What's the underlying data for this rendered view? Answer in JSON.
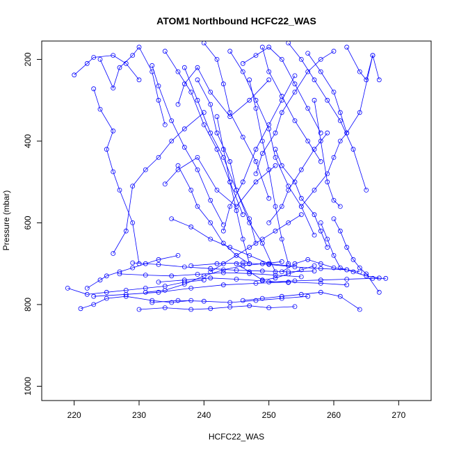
{
  "chart_data": {
    "type": "line",
    "title": "ATOM1 Northbound HCFC22_WAS",
    "xlabel": "HCFC22_WAS",
    "ylabel": "Pressure (mbar)",
    "xlim": [
      215,
      275
    ],
    "ylim": [
      1035,
      155
    ],
    "y_reversed": true,
    "xticks": [
      220,
      230,
      240,
      250,
      260,
      270
    ],
    "yticks": [
      200,
      400,
      600,
      800,
      1000
    ],
    "grid": false,
    "legend": "none",
    "colors": {
      "series": "#0000ff",
      "axis": "#000000",
      "background": "#ffffff"
    },
    "series": [
      {
        "x": [
          220,
          222,
          223,
          226,
          228,
          230
        ],
        "y": [
          238,
          210,
          195,
          190,
          210,
          250
        ]
      },
      {
        "x": [
          223,
          224,
          226,
          225,
          226,
          227,
          229,
          230
        ],
        "y": [
          272,
          322,
          375,
          420,
          475,
          520,
          600,
          700
        ]
      },
      {
        "x": [
          224,
          226,
          227,
          229,
          230,
          232,
          233,
          234
        ],
        "y": [
          200,
          270,
          220,
          190,
          170,
          230,
          300,
          360
        ]
      },
      {
        "x": [
          226,
          228,
          229,
          231,
          233,
          235,
          237,
          240
        ],
        "y": [
          675,
          620,
          510,
          470,
          440,
          400,
          370,
          330
        ]
      },
      {
        "x": [
          222,
          224,
          225,
          227,
          229,
          231,
          233,
          236
        ],
        "y": [
          760,
          740,
          730,
          720,
          710,
          700,
          690,
          680
        ]
      },
      {
        "x": [
          219,
          222,
          225,
          228,
          231,
          234,
          237,
          240
        ],
        "y": [
          760,
          775,
          770,
          765,
          760,
          755,
          745,
          740
        ]
      },
      {
        "x": [
          221,
          223,
          225,
          228,
          232,
          235,
          238
        ],
        "y": [
          810,
          800,
          785,
          780,
          790,
          795,
          790
        ]
      },
      {
        "x": [
          230,
          234,
          238,
          241,
          244,
          247,
          250,
          254
        ],
        "y": [
          812,
          808,
          812,
          810,
          806,
          803,
          808,
          805
        ]
      },
      {
        "x": [
          232,
          233,
          235,
          237,
          239,
          241,
          243
        ],
        "y": [
          215,
          265,
          350,
          415,
          470,
          545,
          605
        ]
      },
      {
        "x": [
          234,
          236,
          238,
          240,
          242,
          244,
          246
        ],
        "y": [
          180,
          230,
          280,
          360,
          420,
          500,
          580
        ]
      },
      {
        "x": [
          236,
          238,
          239,
          241,
          243,
          245,
          247
        ],
        "y": [
          460,
          520,
          560,
          600,
          650,
          680,
          700
        ]
      },
      {
        "x": [
          237,
          239,
          241,
          243,
          245,
          247,
          249,
          251
        ],
        "y": [
          220,
          300,
          380,
          440,
          520,
          600,
          650,
          720
        ]
      },
      {
        "x": [
          240,
          242,
          243,
          244,
          246,
          248,
          250
        ],
        "y": [
          160,
          200,
          260,
          330,
          390,
          450,
          540
        ]
      },
      {
        "x": [
          241,
          243,
          245,
          247,
          249,
          251,
          253,
          255
        ],
        "y": [
          720,
          700,
          680,
          660,
          640,
          620,
          600,
          580
        ]
      },
      {
        "x": [
          243,
          244,
          246,
          248,
          250,
          252,
          254
        ],
        "y": [
          620,
          560,
          500,
          420,
          360,
          300,
          240
        ]
      },
      {
        "x": [
          244,
          246,
          248,
          250,
          251,
          253,
          255,
          257
        ],
        "y": [
          180,
          230,
          300,
          370,
          440,
          510,
          560,
          630
        ]
      },
      {
        "x": [
          245,
          247,
          249,
          251,
          253,
          255,
          257
        ],
        "y": [
          700,
          720,
          740,
          735,
          725,
          715,
          705
        ]
      },
      {
        "x": [
          246,
          248,
          250,
          252,
          254,
          256,
          258
        ],
        "y": [
          210,
          190,
          170,
          200,
          260,
          320,
          380
        ]
      },
      {
        "x": [
          248,
          249,
          251,
          252,
          254,
          256,
          258,
          260
        ],
        "y": [
          480,
          430,
          380,
          330,
          280,
          230,
          200,
          180
        ]
      },
      {
        "x": [
          250,
          252,
          253,
          255,
          257,
          259
        ],
        "y": [
          600,
          560,
          520,
          470,
          420,
          380
        ]
      },
      {
        "x": [
          252,
          254,
          256,
          258,
          260,
          262,
          264
        ],
        "y": [
          720,
          700,
          690,
          700,
          710,
          715,
          720
        ]
      },
      {
        "x": [
          253,
          255,
          257,
          259,
          261,
          263,
          265
        ],
        "y": [
          160,
          200,
          250,
          300,
          350,
          420,
          520
        ]
      },
      {
        "x": [
          255,
          257,
          259,
          260,
          261,
          262
        ],
        "y": [
          560,
          520,
          480,
          440,
          400,
          380
        ]
      },
      {
        "x": [
          256,
          258,
          260,
          261,
          262,
          264,
          266
        ],
        "y": [
          185,
          230,
          280,
          330,
          380,
          330,
          190
        ]
      },
      {
        "x": [
          258,
          259,
          260,
          261,
          263,
          265,
          267
        ],
        "y": [
          600,
          640,
          680,
          710,
          720,
          730,
          735
        ]
      },
      {
        "x": [
          260,
          261,
          262,
          263,
          264,
          265,
          267
        ],
        "y": [
          590,
          620,
          660,
          690,
          710,
          725,
          770
        ]
      },
      {
        "x": [
          262,
          264,
          265,
          266,
          267
        ],
        "y": [
          170,
          230,
          250,
          190,
          250
        ]
      },
      {
        "x": [
          250,
          254,
          258,
          262,
          266,
          268
        ],
        "y": [
          745,
          742,
          740,
          738,
          736,
          736
        ]
      },
      {
        "x": [
          238,
          242,
          246,
          250,
          254,
          258,
          262
        ],
        "y": [
          705,
          700,
          698,
          702,
          708,
          712,
          715
        ]
      },
      {
        "x": [
          233,
          237,
          241,
          245,
          249,
          253
        ],
        "y": [
          745,
          740,
          735,
          738,
          742,
          746
        ]
      },
      {
        "x": [
          231,
          234,
          237,
          240,
          243,
          246,
          249,
          252
        ],
        "y": [
          770,
          765,
          750,
          730,
          715,
          705,
          700,
          695
        ]
      },
      {
        "x": [
          235,
          238,
          241,
          244,
          247,
          250,
          253
        ],
        "y": [
          590,
          610,
          640,
          660,
          680,
          700,
          705
        ]
      },
      {
        "x": [
          239,
          241,
          242,
          244,
          245,
          247,
          248
        ],
        "y": [
          250,
          310,
          380,
          450,
          520,
          590,
          650
        ]
      },
      {
        "x": [
          242,
          243,
          244,
          245,
          246,
          247
        ],
        "y": [
          340,
          420,
          500,
          570,
          640,
          700
        ]
      },
      {
        "x": [
          247,
          248,
          249,
          250,
          251,
          252,
          253
        ],
        "y": [
          250,
          320,
          400,
          470,
          560,
          640,
          700
        ]
      },
      {
        "x": [
          227,
          231,
          235,
          239,
          243,
          247,
          251,
          255
        ],
        "y": [
          725,
          728,
          730,
          726,
          722,
          724,
          728,
          732
        ]
      },
      {
        "x": [
          223,
          228,
          233,
          238,
          243,
          248,
          253,
          258,
          262
        ],
        "y": [
          780,
          775,
          770,
          760,
          752,
          748,
          745,
          748,
          752
        ]
      },
      {
        "x": [
          229,
          233,
          237,
          241,
          245,
          249,
          253,
          257
        ],
        "y": [
          698,
          702,
          708,
          712,
          716,
          718,
          720,
          718
        ]
      },
      {
        "x": [
          234,
          236,
          239,
          242,
          245,
          248,
          251
        ],
        "y": [
          505,
          470,
          440,
          520,
          560,
          500,
          460
        ]
      },
      {
        "x": [
          236,
          237,
          239,
          241,
          244,
          247,
          250
        ],
        "y": [
          310,
          260,
          220,
          280,
          340,
          300,
          250
        ]
      },
      {
        "x": [
          251,
          252,
          254,
          255,
          257,
          258,
          259
        ],
        "y": [
          420,
          460,
          500,
          540,
          580,
          620,
          660
        ]
      },
      {
        "x": [
          249,
          250,
          252,
          254,
          256,
          258
        ],
        "y": [
          170,
          230,
          290,
          350,
          400,
          450
        ]
      },
      {
        "x": [
          257,
          258,
          259,
          260,
          261
        ],
        "y": [
          300,
          400,
          500,
          545,
          560
        ]
      },
      {
        "x": [
          246,
          249,
          252,
          255,
          258,
          261,
          264
        ],
        "y": [
          790,
          785,
          780,
          775,
          770,
          780,
          812
        ]
      },
      {
        "x": [
          232,
          236,
          240,
          244,
          248,
          252,
          256
        ],
        "y": [
          795,
          790,
          792,
          795,
          790,
          785,
          780
        ]
      }
    ]
  }
}
